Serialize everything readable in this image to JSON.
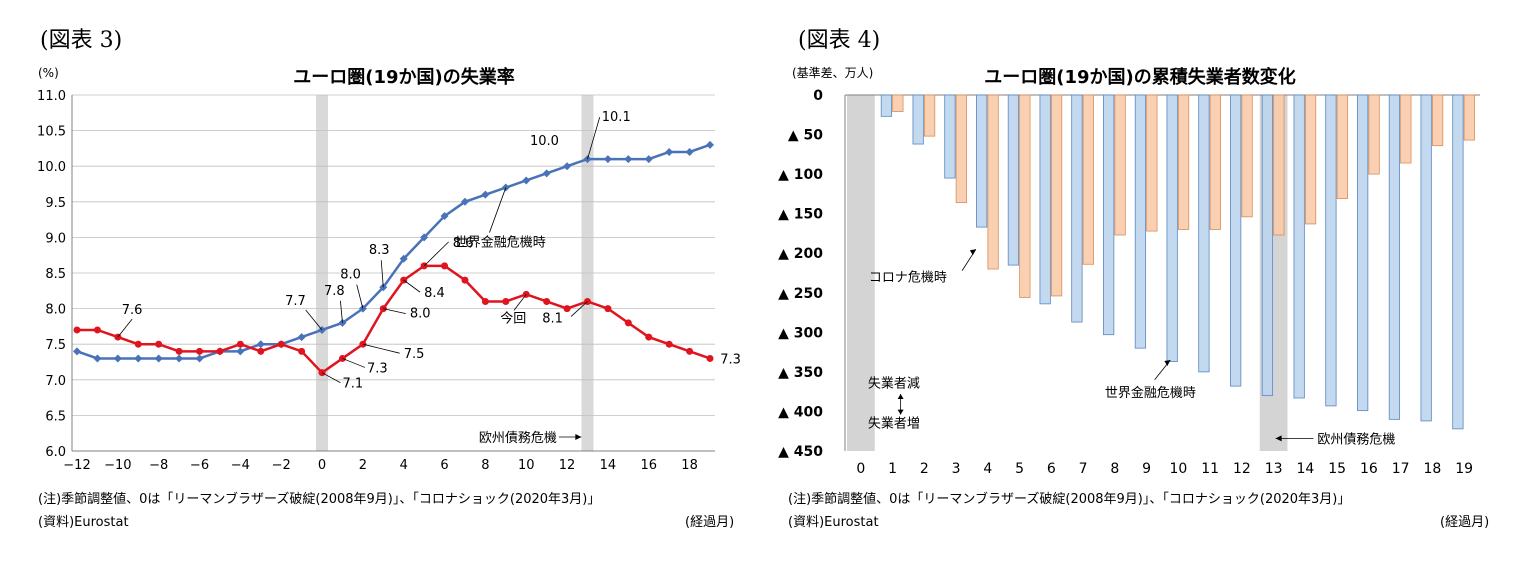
{
  "left": {
    "figure_label": "(図表 3)",
    "note": "(注)季節調整値、0は「リーマンブラザーズ破綻(2008年9月)」、「コロナショック(2020年3月)」",
    "source": "(資料)Eurostat",
    "xunit": "(経過月)"
  },
  "right": {
    "figure_label": "(図表 4)",
    "note": "(注)季節調整値、0は「リーマンブラザーズ破綻(2008年9月)」、「コロナショック(2020年3月)」",
    "source": "(資料)Eurostat",
    "xunit": "(経過月)"
  },
  "chart_data": [
    {
      "type": "line",
      "title": "ユーロ圏(19か国)の失業率",
      "yunit": "(%)",
      "ylim": [
        6.0,
        11.0
      ],
      "yticks": [
        "11.0",
        "10.5",
        "10.0",
        "9.5",
        "9.0",
        "8.5",
        "8.0",
        "7.5",
        "7.0",
        "6.5",
        "6.0"
      ],
      "xlim": [
        -12,
        19
      ],
      "xticks": [
        "-12",
        "-10",
        "-8",
        "-6",
        "-4",
        "-2",
        "0",
        "2",
        "4",
        "6",
        "8",
        "10",
        "12",
        "14",
        "16",
        "18"
      ],
      "grid": true,
      "colors": {
        "gfc": "#4a72b8",
        "covid": "#e0141e",
        "shade": "#d9d9d9"
      },
      "shaded_x": [
        0,
        13
      ],
      "series": [
        {
          "name": "世界金融危機時",
          "x": [
            -12,
            -11,
            -10,
            -9,
            -8,
            -7,
            -6,
            -5,
            -4,
            -3,
            -2,
            -1,
            0,
            1,
            2,
            3,
            4,
            5,
            6,
            7,
            8,
            9,
            10,
            11,
            12,
            13,
            14,
            15,
            16,
            17,
            18,
            19
          ],
          "values": [
            7.4,
            7.3,
            7.3,
            7.3,
            7.3,
            7.3,
            7.3,
            7.4,
            7.4,
            7.5,
            7.5,
            7.6,
            7.7,
            7.8,
            8.0,
            8.3,
            8.7,
            9.0,
            9.3,
            9.5,
            9.6,
            9.7,
            9.8,
            9.9,
            10.0,
            10.1,
            10.1,
            10.1,
            10.1,
            10.2,
            10.2,
            10.3
          ]
        },
        {
          "name": "今回",
          "x": [
            -12,
            -11,
            -10,
            -9,
            -8,
            -7,
            -6,
            -5,
            -4,
            -3,
            -2,
            -1,
            0,
            1,
            2,
            3,
            4,
            5,
            6,
            7,
            8,
            9,
            10,
            11,
            12,
            13,
            14,
            15,
            16,
            17,
            18,
            19
          ],
          "values": [
            7.7,
            7.7,
            7.6,
            7.5,
            7.5,
            7.4,
            7.4,
            7.4,
            7.5,
            7.4,
            7.5,
            7.4,
            7.1,
            7.3,
            7.5,
            8.0,
            8.4,
            8.6,
            8.6,
            8.4,
            8.1,
            8.1,
            8.2,
            8.1,
            8.0,
            8.1,
            8.0,
            7.8,
            7.6,
            7.5,
            7.4,
            7.3
          ]
        }
      ],
      "annotations": [
        "7.6",
        "7.7",
        "7.8",
        "8.0",
        "8.3",
        "8.6",
        "10.0",
        "10.1",
        "7.1",
        "7.3",
        "7.5",
        "8.0",
        "8.4",
        "8.1",
        "7.3",
        "世界金融危機時",
        "今回",
        "欧州債務危機"
      ]
    },
    {
      "type": "bar",
      "title": "ユーロ圏(19か国)の累積失業者数変化",
      "yunit": "(基準差、万人)",
      "ylim": [
        -450,
        0
      ],
      "yticks": [
        "0",
        "▲ 50",
        "▲ 100",
        "▲ 150",
        "▲ 200",
        "▲ 250",
        "▲ 300",
        "▲ 350",
        "▲ 400",
        "▲ 450"
      ],
      "categories": [
        "0",
        "1",
        "2",
        "3",
        "4",
        "5",
        "6",
        "7",
        "8",
        "9",
        "10",
        "11",
        "12",
        "13",
        "14",
        "15",
        "16",
        "17",
        "18",
        "19"
      ],
      "colors": {
        "gfc": "#bcd5ee",
        "gfc_border": "#5b87c0",
        "covid": "#f8cbaa",
        "covid_border": "#d98e5b",
        "shade": "#d4d4d4"
      },
      "shaded_categories": [
        "0",
        "13"
      ],
      "series": [
        {
          "name": "世界金融危機時",
          "values": [
            0,
            -27,
            -62,
            -105,
            -167,
            -215,
            -264,
            -287,
            -303,
            -320,
            -337,
            -350,
            -368,
            -380,
            -383,
            -393,
            -399,
            -410,
            -412,
            -422
          ]
        },
        {
          "name": "コロナ危機時",
          "values": [
            0,
            -21,
            -52,
            -136,
            -220,
            -256,
            -254,
            -214,
            -177,
            -172,
            -170,
            -170,
            -154,
            -177,
            -163,
            -131,
            -100,
            -86,
            -64,
            -57
          ]
        }
      ],
      "annotations": [
        "コロナ危機時",
        "世界金融危機時",
        "欧州債務危機",
        "失業者減",
        "失業者増"
      ]
    }
  ]
}
